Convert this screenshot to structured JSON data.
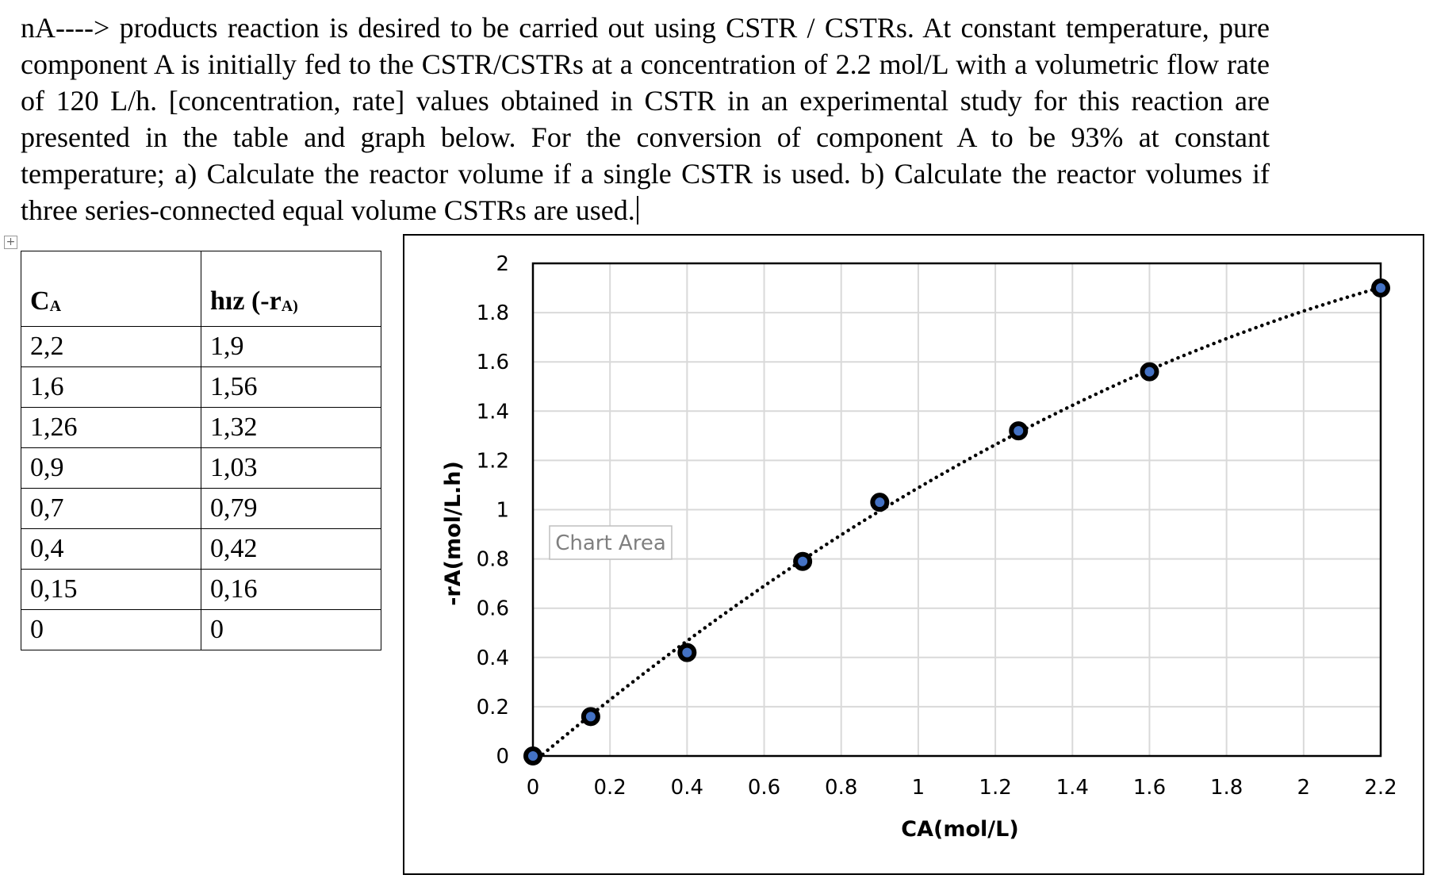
{
  "problem_text": "nA----> products reaction is desired to be carried out using CSTR / CSTRs. At constant temperature, pure component A is initially fed to the CSTR/CSTRs at a concentration of 2.2 mol/L with a volumetric flow rate of 120 L/h. [concentration, rate] values obtained in CSTR in an experimental study for this reaction are presented in the table and graph below. For the conversion of component A to be 93% at constant temperature; a) Calculate the reactor volume if a single CSTR is used. b) Calculate the reactor volumes if three series-connected equal volume CSTRs are used.",
  "table": {
    "header": {
      "col1_main": "C",
      "col1_sub": "A",
      "col2_main": "hız (-r",
      "col2_sub": "A)"
    },
    "rows": [
      [
        "2,2",
        "1,9"
      ],
      [
        "1,6",
        "1,56"
      ],
      [
        "1,26",
        "1,32"
      ],
      [
        "0,9",
        "1,03"
      ],
      [
        "0,7",
        "0,79"
      ],
      [
        "0,4",
        "0,42"
      ],
      [
        "0,15",
        "0,16"
      ],
      [
        "0",
        "0"
      ]
    ]
  },
  "chart_area_label": "Chart Area",
  "colors": {
    "marker_fill": "#4472c4",
    "marker_edge": "#000000",
    "grid": "#d9d9d9"
  },
  "chart_data": {
    "type": "scatter",
    "title": "",
    "xlabel": "CA(mol/L)",
    "ylabel": "-rA(mol/L.h)",
    "xlim": [
      0,
      2.2
    ],
    "ylim": [
      0,
      2
    ],
    "xticks": [
      0,
      0.2,
      0.4,
      0.6,
      0.8,
      1,
      1.2,
      1.4,
      1.6,
      1.8,
      2,
      2.2
    ],
    "yticks": [
      0,
      0.2,
      0.4,
      0.6,
      0.8,
      1,
      1.2,
      1.4,
      1.6,
      1.8,
      2
    ],
    "grid": true,
    "trendline": "polynomial (dotted)",
    "series": [
      {
        "name": "-rA",
        "x": [
          2.2,
          1.6,
          1.26,
          0.9,
          0.7,
          0.4,
          0.15,
          0
        ],
        "y": [
          1.9,
          1.56,
          1.32,
          1.03,
          0.79,
          0.42,
          0.16,
          0
        ]
      }
    ]
  }
}
